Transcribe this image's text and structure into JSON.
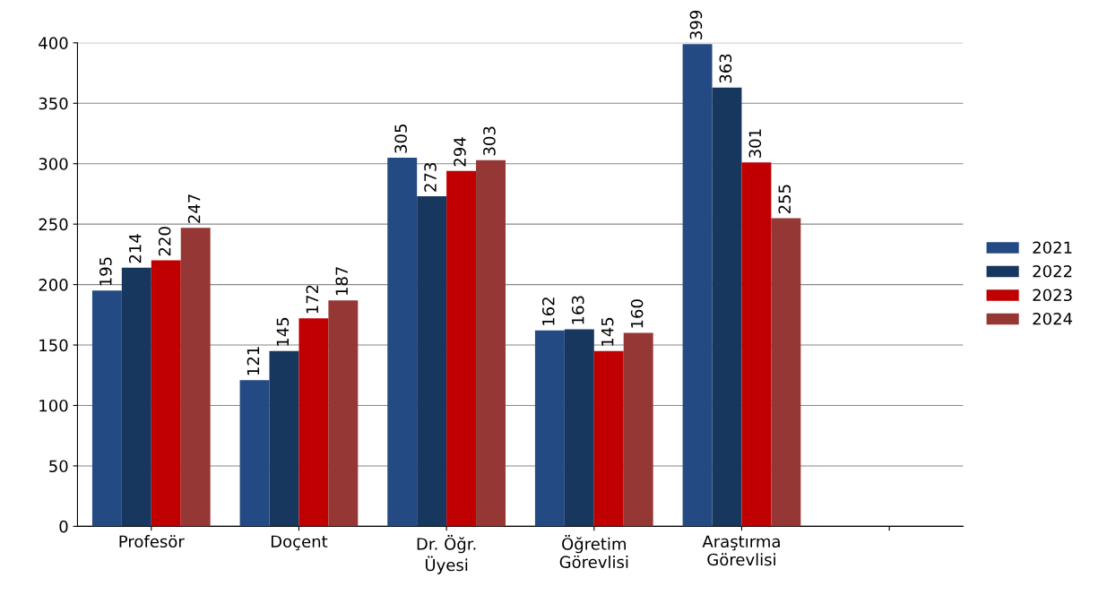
{
  "chart_data": {
    "type": "bar",
    "categories": [
      "Profesör",
      "Doçent",
      "Dr. Öğr.\nÜyesi",
      "Öğretim\nGörevlisi",
      "Araştırma\nGörevlisi",
      null
    ],
    "series": [
      {
        "name": "2021",
        "color": "#234a82",
        "values": [
          195,
          121,
          305,
          162,
          399,
          null
        ]
      },
      {
        "name": "2022",
        "color": "#17375e",
        "values": [
          214,
          145,
          273,
          163,
          363,
          null
        ]
      },
      {
        "name": "2023",
        "color": "#c00000",
        "values": [
          220,
          172,
          294,
          145,
          301,
          null
        ]
      },
      {
        "name": "2024",
        "color": "#953735",
        "values": [
          247,
          187,
          303,
          160,
          255,
          null
        ]
      }
    ],
    "ylim": [
      0,
      400
    ],
    "yticks": [
      0,
      50,
      100,
      150,
      200,
      250,
      300,
      350,
      400
    ],
    "grid": "y",
    "legend": "right",
    "data_labels": true
  }
}
